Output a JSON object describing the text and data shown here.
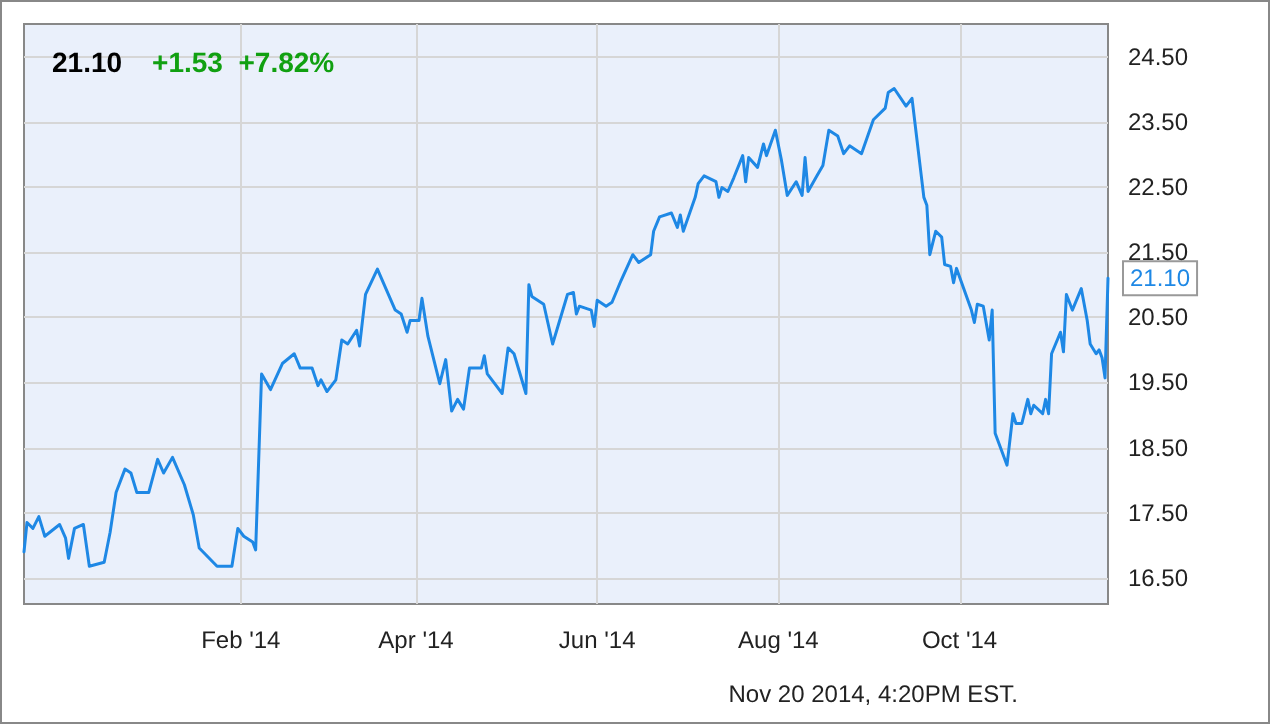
{
  "chart_data": {
    "type": "line",
    "title": "21.10",
    "subtitle": "+1.53  +7.82%",
    "x": [
      "2013-11-20",
      "2013-11-21",
      "2013-11-23",
      "2013-11-25",
      "2013-11-27",
      "2013-12-02",
      "2013-12-04",
      "2013-12-05",
      "2013-12-07",
      "2013-12-10",
      "2013-12-12",
      "2013-12-17",
      "2013-12-19",
      "2013-12-21",
      "2013-12-24",
      "2013-12-26",
      "2013-12-28",
      "2014-01-01",
      "2014-01-04",
      "2014-01-06",
      "2014-01-09",
      "2014-01-13",
      "2014-01-16",
      "2014-01-18",
      "2014-01-24",
      "2014-01-29",
      "2014-01-31",
      "2014-02-02",
      "2014-02-05",
      "2014-02-06",
      "2014-02-08",
      "2014-02-11",
      "2014-02-15",
      "2014-02-19",
      "2014-02-21",
      "2014-02-25",
      "2014-02-27",
      "2014-02-28",
      "2014-03-02",
      "2014-03-05",
      "2014-03-07",
      "2014-03-09",
      "2014-03-12",
      "2014-03-13",
      "2014-03-15",
      "2014-03-19",
      "2014-03-25",
      "2014-03-27",
      "2014-03-29",
      "2014-03-30",
      "2014-04-02",
      "2014-04-03",
      "2014-04-05",
      "2014-04-09",
      "2014-04-11",
      "2014-04-13",
      "2014-04-15",
      "2014-04-17",
      "2014-04-19",
      "2014-04-23",
      "2014-04-24",
      "2014-04-25",
      "2014-04-28",
      "2014-04-30",
      "2014-05-02",
      "2014-05-04",
      "2014-05-08",
      "2014-05-09",
      "2014-05-10",
      "2014-05-14",
      "2014-05-17",
      "2014-05-22",
      "2014-05-24",
      "2014-05-25",
      "2014-05-26",
      "2014-05-30",
      "2014-05-31",
      "2014-06-01",
      "2014-06-04",
      "2014-06-06",
      "2014-06-09",
      "2014-06-13",
      "2014-06-15",
      "2014-06-19",
      "2014-06-20",
      "2014-06-22",
      "2014-06-26",
      "2014-06-28",
      "2014-06-29",
      "2014-06-30",
      "2014-07-04",
      "2014-07-05",
      "2014-07-07",
      "2014-07-11",
      "2014-07-12",
      "2014-07-13",
      "2014-07-15",
      "2014-07-17",
      "2014-07-20",
      "2014-07-21",
      "2014-07-22",
      "2014-07-25",
      "2014-07-27",
      "2014-07-28",
      "2014-07-31",
      "2014-08-02",
      "2014-08-04",
      "2014-08-07",
      "2014-08-09",
      "2014-08-10",
      "2014-08-11",
      "2014-08-14",
      "2014-08-16",
      "2014-08-18",
      "2014-08-21",
      "2014-08-23",
      "2014-08-25",
      "2014-08-29",
      "2014-09-02",
      "2014-09-06",
      "2014-09-07",
      "2014-09-09",
      "2014-09-13",
      "2014-09-15",
      "2014-09-19",
      "2014-09-20",
      "2014-09-21",
      "2014-09-23",
      "2014-09-25",
      "2014-09-26",
      "2014-09-28",
      "2014-09-29",
      "2014-09-30",
      "2014-10-05",
      "2014-10-06",
      "2014-10-07",
      "2014-10-09",
      "2014-10-11",
      "2014-10-12",
      "2014-10-13",
      "2014-10-17",
      "2014-10-19",
      "2014-10-20",
      "2014-10-22",
      "2014-10-24",
      "2014-10-25",
      "2014-10-26",
      "2014-10-29",
      "2014-10-30",
      "2014-10-31",
      "2014-11-01",
      "2014-11-04",
      "2014-11-05",
      "2014-11-06",
      "2014-11-08",
      "2014-11-11",
      "2014-11-13",
      "2014-11-14",
      "2014-11-16",
      "2014-11-17",
      "2014-11-18",
      "2014-11-19",
      "2014-11-20"
    ],
    "series": [
      {
        "color": "#1e88e5",
        "values": [
          16.9,
          17.35,
          17.26,
          17.44,
          17.14,
          17.32,
          17.11,
          16.8,
          17.26,
          17.32,
          16.68,
          16.74,
          17.2,
          17.81,
          18.17,
          18.11,
          17.81,
          17.81,
          18.32,
          18.11,
          18.35,
          17.93,
          17.47,
          16.96,
          16.68,
          16.68,
          17.26,
          17.14,
          17.05,
          16.93,
          19.63,
          19.39,
          19.79,
          19.94,
          19.72,
          19.72,
          19.45,
          19.54,
          19.36,
          19.54,
          20.15,
          20.09,
          20.3,
          20.06,
          20.85,
          21.24,
          20.61,
          20.55,
          20.27,
          20.45,
          20.45,
          20.79,
          20.21,
          19.48,
          19.85,
          19.06,
          19.24,
          19.09,
          19.72,
          19.72,
          19.91,
          19.63,
          19.45,
          19.33,
          20.03,
          19.94,
          19.33,
          21.0,
          20.82,
          20.7,
          20.09,
          20.85,
          20.88,
          20.55,
          20.67,
          20.61,
          20.36,
          20.76,
          20.67,
          20.73,
          21.06,
          21.46,
          21.34,
          21.46,
          21.82,
          22.04,
          22.1,
          21.88,
          22.07,
          21.82,
          22.34,
          22.55,
          22.67,
          22.58,
          22.34,
          22.49,
          22.43,
          22.64,
          22.98,
          22.58,
          22.95,
          22.8,
          23.16,
          22.98,
          23.37,
          22.92,
          22.37,
          22.58,
          22.37,
          22.95,
          22.43,
          22.67,
          22.83,
          23.37,
          23.28,
          23.01,
          23.13,
          23.01,
          23.53,
          23.71,
          23.95,
          24.01,
          23.74,
          23.86,
          22.34,
          22.22,
          21.46,
          21.82,
          21.73,
          21.31,
          21.28,
          21.03,
          21.25,
          20.61,
          20.42,
          20.7,
          20.67,
          20.15,
          20.61,
          18.72,
          18.23,
          19.02,
          18.87,
          18.87,
          19.24,
          19.02,
          19.15,
          19.02,
          19.24,
          19.02,
          19.94,
          20.27,
          19.97,
          20.85,
          20.61,
          20.94,
          20.45,
          20.09,
          19.94,
          20.0,
          19.88,
          19.57,
          21.1
        ]
      }
    ],
    "xlim": [
      "2013-11-20",
      "2014-11-20"
    ],
    "xticks": [
      {
        "value": "2014-02-01",
        "label": "Feb '14"
      },
      {
        "value": "2014-04-01",
        "label": "Apr '14"
      },
      {
        "value": "2014-06-01",
        "label": "Jun '14"
      },
      {
        "value": "2014-08-01",
        "label": "Aug '14"
      },
      {
        "value": "2014-10-01",
        "label": "Oct '14"
      }
    ],
    "ylim": [
      16.1,
      25
    ],
    "yticks": [
      {
        "value": 16.5,
        "label": "16.50"
      },
      {
        "value": 17.5,
        "label": "17.50"
      },
      {
        "value": 18.5,
        "label": "18.50"
      },
      {
        "value": 19.5,
        "label": "19.50"
      },
      {
        "value": 20.5,
        "label": "20.50"
      },
      {
        "value": 21.5,
        "label": "21.50"
      },
      {
        "value": 22.5,
        "label": "22.50"
      },
      {
        "value": 23.5,
        "label": "23.50"
      },
      {
        "value": 24.5,
        "label": "24.50"
      }
    ],
    "annotations": [
      {
        "text": "21.10",
        "x": "2014-11-20",
        "y": 21.1
      },
      "Nov 20 2014, 4:20PM EST."
    ],
    "grid": true,
    "marker": "none",
    "line_style": "solid"
  }
}
